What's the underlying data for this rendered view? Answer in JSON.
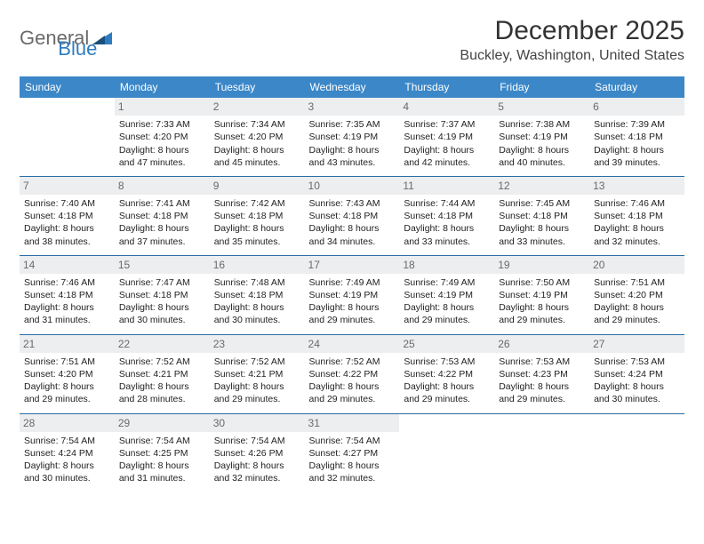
{
  "logo": {
    "text1": "General",
    "text2": "Blue"
  },
  "title": "December 2025",
  "location": "Buckley, Washington, United States",
  "header_bg": "#3b87c8",
  "divider_color": "#2a6ca5",
  "daynum_bg": "#eceeef",
  "day_headers": [
    "Sunday",
    "Monday",
    "Tuesday",
    "Wednesday",
    "Thursday",
    "Friday",
    "Saturday"
  ],
  "weeks": [
    [
      {
        "num": "",
        "lines": []
      },
      {
        "num": "1",
        "lines": [
          "Sunrise: 7:33 AM",
          "Sunset: 4:20 PM",
          "Daylight: 8 hours",
          "and 47 minutes."
        ]
      },
      {
        "num": "2",
        "lines": [
          "Sunrise: 7:34 AM",
          "Sunset: 4:20 PM",
          "Daylight: 8 hours",
          "and 45 minutes."
        ]
      },
      {
        "num": "3",
        "lines": [
          "Sunrise: 7:35 AM",
          "Sunset: 4:19 PM",
          "Daylight: 8 hours",
          "and 43 minutes."
        ]
      },
      {
        "num": "4",
        "lines": [
          "Sunrise: 7:37 AM",
          "Sunset: 4:19 PM",
          "Daylight: 8 hours",
          "and 42 minutes."
        ]
      },
      {
        "num": "5",
        "lines": [
          "Sunrise: 7:38 AM",
          "Sunset: 4:19 PM",
          "Daylight: 8 hours",
          "and 40 minutes."
        ]
      },
      {
        "num": "6",
        "lines": [
          "Sunrise: 7:39 AM",
          "Sunset: 4:18 PM",
          "Daylight: 8 hours",
          "and 39 minutes."
        ]
      }
    ],
    [
      {
        "num": "7",
        "lines": [
          "Sunrise: 7:40 AM",
          "Sunset: 4:18 PM",
          "Daylight: 8 hours",
          "and 38 minutes."
        ]
      },
      {
        "num": "8",
        "lines": [
          "Sunrise: 7:41 AM",
          "Sunset: 4:18 PM",
          "Daylight: 8 hours",
          "and 37 minutes."
        ]
      },
      {
        "num": "9",
        "lines": [
          "Sunrise: 7:42 AM",
          "Sunset: 4:18 PM",
          "Daylight: 8 hours",
          "and 35 minutes."
        ]
      },
      {
        "num": "10",
        "lines": [
          "Sunrise: 7:43 AM",
          "Sunset: 4:18 PM",
          "Daylight: 8 hours",
          "and 34 minutes."
        ]
      },
      {
        "num": "11",
        "lines": [
          "Sunrise: 7:44 AM",
          "Sunset: 4:18 PM",
          "Daylight: 8 hours",
          "and 33 minutes."
        ]
      },
      {
        "num": "12",
        "lines": [
          "Sunrise: 7:45 AM",
          "Sunset: 4:18 PM",
          "Daylight: 8 hours",
          "and 33 minutes."
        ]
      },
      {
        "num": "13",
        "lines": [
          "Sunrise: 7:46 AM",
          "Sunset: 4:18 PM",
          "Daylight: 8 hours",
          "and 32 minutes."
        ]
      }
    ],
    [
      {
        "num": "14",
        "lines": [
          "Sunrise: 7:46 AM",
          "Sunset: 4:18 PM",
          "Daylight: 8 hours",
          "and 31 minutes."
        ]
      },
      {
        "num": "15",
        "lines": [
          "Sunrise: 7:47 AM",
          "Sunset: 4:18 PM",
          "Daylight: 8 hours",
          "and 30 minutes."
        ]
      },
      {
        "num": "16",
        "lines": [
          "Sunrise: 7:48 AM",
          "Sunset: 4:18 PM",
          "Daylight: 8 hours",
          "and 30 minutes."
        ]
      },
      {
        "num": "17",
        "lines": [
          "Sunrise: 7:49 AM",
          "Sunset: 4:19 PM",
          "Daylight: 8 hours",
          "and 29 minutes."
        ]
      },
      {
        "num": "18",
        "lines": [
          "Sunrise: 7:49 AM",
          "Sunset: 4:19 PM",
          "Daylight: 8 hours",
          "and 29 minutes."
        ]
      },
      {
        "num": "19",
        "lines": [
          "Sunrise: 7:50 AM",
          "Sunset: 4:19 PM",
          "Daylight: 8 hours",
          "and 29 minutes."
        ]
      },
      {
        "num": "20",
        "lines": [
          "Sunrise: 7:51 AM",
          "Sunset: 4:20 PM",
          "Daylight: 8 hours",
          "and 29 minutes."
        ]
      }
    ],
    [
      {
        "num": "21",
        "lines": [
          "Sunrise: 7:51 AM",
          "Sunset: 4:20 PM",
          "Daylight: 8 hours",
          "and 29 minutes."
        ]
      },
      {
        "num": "22",
        "lines": [
          "Sunrise: 7:52 AM",
          "Sunset: 4:21 PM",
          "Daylight: 8 hours",
          "and 28 minutes."
        ]
      },
      {
        "num": "23",
        "lines": [
          "Sunrise: 7:52 AM",
          "Sunset: 4:21 PM",
          "Daylight: 8 hours",
          "and 29 minutes."
        ]
      },
      {
        "num": "24",
        "lines": [
          "Sunrise: 7:52 AM",
          "Sunset: 4:22 PM",
          "Daylight: 8 hours",
          "and 29 minutes."
        ]
      },
      {
        "num": "25",
        "lines": [
          "Sunrise: 7:53 AM",
          "Sunset: 4:22 PM",
          "Daylight: 8 hours",
          "and 29 minutes."
        ]
      },
      {
        "num": "26",
        "lines": [
          "Sunrise: 7:53 AM",
          "Sunset: 4:23 PM",
          "Daylight: 8 hours",
          "and 29 minutes."
        ]
      },
      {
        "num": "27",
        "lines": [
          "Sunrise: 7:53 AM",
          "Sunset: 4:24 PM",
          "Daylight: 8 hours",
          "and 30 minutes."
        ]
      }
    ],
    [
      {
        "num": "28",
        "lines": [
          "Sunrise: 7:54 AM",
          "Sunset: 4:24 PM",
          "Daylight: 8 hours",
          "and 30 minutes."
        ]
      },
      {
        "num": "29",
        "lines": [
          "Sunrise: 7:54 AM",
          "Sunset: 4:25 PM",
          "Daylight: 8 hours",
          "and 31 minutes."
        ]
      },
      {
        "num": "30",
        "lines": [
          "Sunrise: 7:54 AM",
          "Sunset: 4:26 PM",
          "Daylight: 8 hours",
          "and 32 minutes."
        ]
      },
      {
        "num": "31",
        "lines": [
          "Sunrise: 7:54 AM",
          "Sunset: 4:27 PM",
          "Daylight: 8 hours",
          "and 32 minutes."
        ]
      },
      {
        "num": "",
        "lines": []
      },
      {
        "num": "",
        "lines": []
      },
      {
        "num": "",
        "lines": []
      }
    ]
  ]
}
